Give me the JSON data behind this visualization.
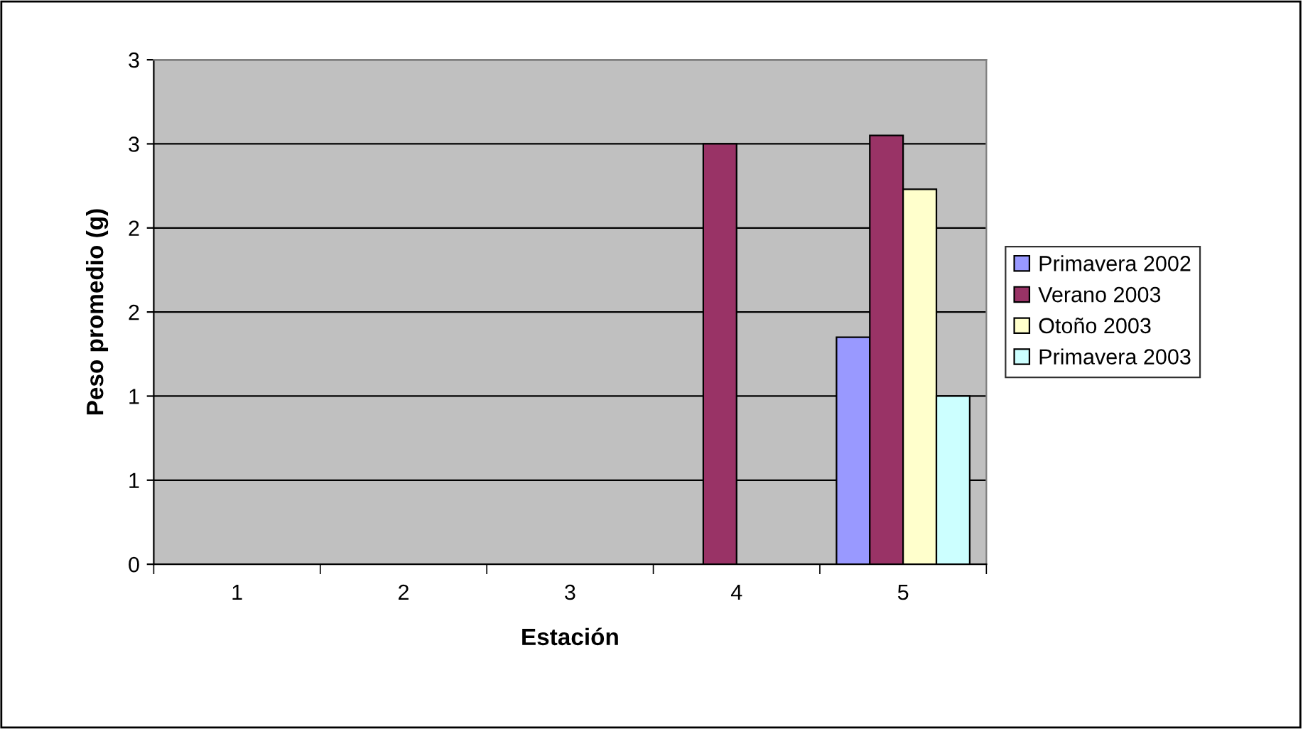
{
  "chart_data": {
    "type": "bar",
    "xlabel": "Estación",
    "ylabel": "Peso promedio (g)",
    "categories": [
      "1",
      "2",
      "3",
      "4",
      "5"
    ],
    "series": [
      {
        "name": "Primavera 2002",
        "color": "#9999ff",
        "values": [
          null,
          null,
          null,
          null,
          1.35
        ]
      },
      {
        "name": "Verano 2003",
        "color": "#993366",
        "values": [
          null,
          null,
          null,
          2.5,
          2.55
        ]
      },
      {
        "name": "Otoño 2003",
        "color": "#ffffcc",
        "values": [
          null,
          null,
          null,
          null,
          2.23
        ]
      },
      {
        "name": "Primavera 2003",
        "color": "#ccffff",
        "values": [
          null,
          null,
          null,
          null,
          1.0
        ]
      }
    ],
    "ylim": [
      0,
      3
    ],
    "yticks": [
      0,
      {
        "value": 0.5,
        "label": "1"
      },
      1,
      {
        "value": 1.5,
        "label": "2"
      },
      2,
      {
        "value": 2.5,
        "label": "3"
      },
      3
    ],
    "grid": "y",
    "legend": "right"
  }
}
